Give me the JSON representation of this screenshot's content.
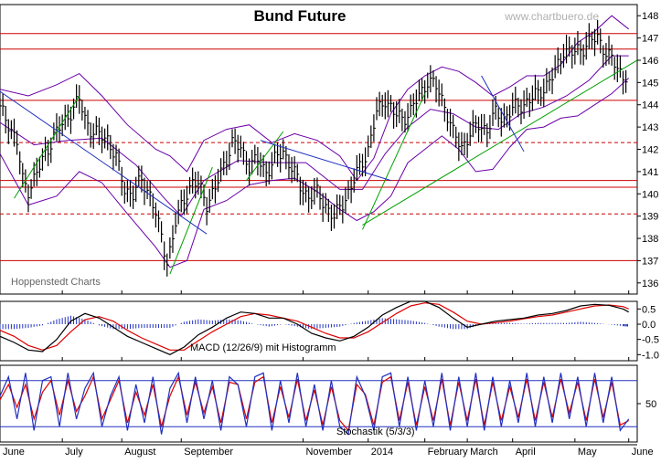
{
  "title": "Bund Future",
  "watermark": "www.chartbuero.de",
  "source_label": "Hoppenstedt Charts",
  "colors": {
    "price": "#000000",
    "bollinger": "#6a00a8",
    "support_lines": "#cc0000",
    "trend_up": "#00a000",
    "trend_down": "#2030c0",
    "macd_line": "#000000",
    "signal_line": "#dd0000",
    "histogram": "#2030c0",
    "stoch_k": "#2030c0",
    "stoch_d": "#dd0000",
    "watermark": "#b0b0b0"
  },
  "chart_data": [
    {
      "type": "line",
      "panel": "price",
      "title": "Bund Future",
      "x_labels": [
        "June",
        "July",
        "August",
        "September",
        "November",
        "2014",
        "February",
        "March",
        "April",
        "May",
        "June"
      ],
      "x_label_positions": [
        0,
        22,
        43,
        64,
        107,
        130,
        150,
        165,
        181,
        203,
        222
      ],
      "x_range": [
        0,
        225
      ],
      "ylim": [
        135.5,
        148.5
      ],
      "yticks": [
        136,
        137,
        138,
        139,
        140,
        141,
        142,
        143,
        144,
        145,
        146,
        147,
        148
      ],
      "series": [
        {
          "kind": "close",
          "x": [
            0,
            3,
            6,
            8,
            10,
            13,
            16,
            19,
            22,
            25,
            28,
            30,
            32,
            35,
            38,
            41,
            44,
            47,
            50,
            53,
            55,
            57,
            59,
            61,
            62,
            64,
            66,
            68,
            70,
            73,
            76,
            79,
            82,
            85,
            88,
            91,
            94,
            97,
            100,
            103,
            106,
            109,
            112,
            115,
            118,
            121,
            124,
            127,
            130,
            133,
            136,
            139,
            142,
            145,
            148,
            151,
            154,
            157,
            160,
            163,
            166,
            169,
            172,
            175,
            178,
            181,
            184,
            187,
            190,
            193,
            196,
            199,
            202,
            205,
            208,
            211,
            214,
            217,
            220,
            222
          ],
          "y": [
            143.8,
            143.2,
            142.3,
            140.6,
            140.2,
            140.9,
            141.8,
            142.6,
            143.1,
            143.7,
            144.2,
            143.4,
            142.9,
            142.6,
            142.5,
            141.6,
            140.2,
            140.0,
            140.6,
            140.0,
            139.1,
            138.0,
            137.0,
            138.0,
            138.7,
            139.4,
            140.1,
            140.5,
            140.4,
            139.6,
            140.2,
            141.3,
            142.3,
            142.0,
            141.3,
            141.5,
            141.0,
            141.5,
            141.9,
            141.2,
            140.3,
            139.9,
            140.0,
            139.5,
            138.9,
            139.6,
            140.3,
            141.2,
            142.0,
            143.6,
            144.3,
            143.6,
            143.4,
            143.7,
            144.4,
            145.1,
            144.8,
            144.0,
            142.7,
            142.1,
            142.7,
            143.1,
            142.9,
            143.6,
            143.4,
            143.8,
            144.0,
            144.2,
            144.5,
            144.9,
            145.4,
            146.5,
            146.3,
            146.5,
            146.8,
            147.0,
            146.4,
            145.8,
            145.3,
            145.4
          ]
        },
        {
          "kind": "bollinger-upper",
          "x": [
            0,
            10,
            20,
            28,
            36,
            45,
            55,
            60,
            66,
            72,
            80,
            88,
            96,
            104,
            112,
            120,
            126,
            132,
            138,
            144,
            150,
            156,
            162,
            168,
            174,
            180,
            186,
            192,
            198,
            204,
            210,
            216,
            222
          ],
          "y": [
            144.7,
            144.4,
            144.9,
            145.4,
            144.4,
            143.1,
            142.0,
            141.7,
            141.0,
            142.4,
            142.9,
            143.1,
            142.3,
            142.7,
            142.4,
            141.7,
            140.6,
            141.6,
            143.6,
            144.7,
            145.3,
            145.7,
            145.5,
            145.0,
            144.4,
            144.8,
            145.3,
            145.3,
            145.8,
            146.8,
            147.3,
            148.0,
            147.4
          ]
        },
        {
          "kind": "bollinger-lower",
          "x": [
            0,
            10,
            20,
            28,
            36,
            45,
            55,
            60,
            66,
            72,
            80,
            88,
            96,
            104,
            112,
            120,
            126,
            132,
            138,
            144,
            150,
            156,
            162,
            168,
            174,
            180,
            186,
            192,
            198,
            204,
            210,
            216,
            222
          ],
          "y": [
            141.8,
            139.5,
            139.9,
            141.0,
            140.5,
            139.1,
            137.6,
            136.7,
            137.0,
            139.3,
            139.7,
            140.4,
            140.6,
            140.7,
            140.1,
            139.3,
            138.8,
            139.2,
            139.9,
            141.4,
            142.0,
            142.6,
            142.0,
            141.0,
            141.1,
            142.1,
            142.9,
            143.0,
            143.4,
            143.5,
            144.0,
            144.5,
            145.2
          ]
        },
        {
          "kind": "bollinger-mid",
          "x": [
            0,
            12,
            24,
            36,
            48,
            58,
            64,
            72,
            84,
            96,
            108,
            120,
            128,
            136,
            144,
            152,
            160,
            168,
            176,
            184,
            192,
            200,
            208,
            216,
            222
          ],
          "y": [
            143.2,
            142.2,
            142.4,
            142.5,
            141.3,
            139.8,
            139.0,
            140.6,
            141.5,
            141.4,
            141.4,
            140.2,
            140.2,
            141.8,
            143.0,
            143.8,
            143.6,
            143.0,
            142.9,
            143.6,
            143.9,
            144.4,
            145.1,
            146.2,
            146.2
          ]
        }
      ],
      "horizontal_lines": [
        147.2,
        146.5,
        144.2,
        140.6,
        140.3,
        137.0
      ],
      "dashed_lines": [
        139.1,
        142.3
      ],
      "trend_lines": [
        {
          "color": "trend_up",
          "points": [
            [
              5,
              139.8
            ],
            [
              28,
              144.4
            ]
          ]
        },
        {
          "color": "trend_up",
          "points": [
            [
              60,
              136.4
            ],
            [
              75,
              141.2
            ]
          ]
        },
        {
          "color": "trend_up",
          "points": [
            [
              87,
              140.6
            ],
            [
              100,
              142.8
            ]
          ]
        },
        {
          "color": "trend_up",
          "points": [
            [
              128,
              138.4
            ],
            [
              150,
              144.5
            ]
          ]
        },
        {
          "color": "trend_up",
          "points": [
            [
              128,
              138.6
            ],
            [
              225,
              146.0
            ]
          ]
        },
        {
          "color": "trend_down",
          "points": [
            [
              0,
              144.6
            ],
            [
              73,
              138.2
            ]
          ]
        },
        {
          "color": "trend_down",
          "points": [
            [
              92,
              142.4
            ],
            [
              138,
              140.6
            ]
          ]
        },
        {
          "color": "trend_down",
          "points": [
            [
              170,
              145.3
            ],
            [
              185,
              141.9
            ]
          ]
        }
      ]
    },
    {
      "type": "line",
      "panel": "macd",
      "title": "MACD (12/26/9) mit Histogramm",
      "ylim": [
        -1.2,
        0.75
      ],
      "yticks": [
        0.5,
        0.0,
        -0.5,
        -1.0
      ],
      "ytick_labels": [
        "0.5",
        "0.0",
        "-0.5",
        "-1.0"
      ],
      "series": [
        {
          "kind": "macd",
          "x": [
            0,
            5,
            10,
            15,
            20,
            25,
            30,
            35,
            40,
            45,
            50,
            55,
            60,
            65,
            70,
            75,
            80,
            85,
            90,
            95,
            100,
            105,
            110,
            115,
            120,
            125,
            130,
            135,
            140,
            145,
            150,
            155,
            160,
            165,
            170,
            175,
            180,
            185,
            190,
            195,
            200,
            205,
            210,
            215,
            220,
            222
          ],
          "y": [
            -0.4,
            -0.6,
            -0.85,
            -0.9,
            -0.5,
            0.1,
            0.35,
            0.2,
            -0.1,
            -0.4,
            -0.6,
            -0.8,
            -1.0,
            -0.75,
            -0.35,
            -0.1,
            0.2,
            0.4,
            0.35,
            0.2,
            0.2,
            0.0,
            -0.3,
            -0.45,
            -0.55,
            -0.4,
            -0.1,
            0.3,
            0.55,
            0.75,
            0.75,
            0.55,
            0.2,
            -0.1,
            0.0,
            0.1,
            0.15,
            0.2,
            0.3,
            0.35,
            0.45,
            0.6,
            0.65,
            0.62,
            0.5,
            0.4
          ]
        },
        {
          "kind": "signal",
          "x": [
            0,
            5,
            10,
            15,
            20,
            25,
            30,
            35,
            40,
            45,
            50,
            55,
            60,
            65,
            70,
            75,
            80,
            85,
            90,
            95,
            100,
            105,
            110,
            115,
            120,
            125,
            130,
            135,
            140,
            145,
            150,
            155,
            160,
            165,
            170,
            175,
            180,
            185,
            190,
            195,
            200,
            205,
            210,
            215,
            220,
            222
          ],
          "y": [
            -0.2,
            -0.4,
            -0.7,
            -0.85,
            -0.7,
            -0.25,
            0.15,
            0.25,
            0.1,
            -0.2,
            -0.45,
            -0.65,
            -0.85,
            -0.85,
            -0.55,
            -0.25,
            0.0,
            0.25,
            0.35,
            0.3,
            0.2,
            0.1,
            -0.1,
            -0.3,
            -0.45,
            -0.45,
            -0.25,
            0.05,
            0.35,
            0.6,
            0.7,
            0.65,
            0.4,
            0.1,
            0.0,
            0.05,
            0.1,
            0.18,
            0.25,
            0.3,
            0.4,
            0.5,
            0.6,
            0.63,
            0.58,
            0.5
          ]
        }
      ]
    },
    {
      "type": "line",
      "panel": "stochastic",
      "title": "Stochastik (5/3/3)",
      "ylim": [
        0,
        100
      ],
      "yticks": [
        50
      ],
      "reference_lines": [
        80,
        20
      ],
      "series": [
        {
          "kind": "%K",
          "x": [
            0,
            3,
            6,
            9,
            12,
            15,
            18,
            21,
            24,
            27,
            30,
            33,
            36,
            39,
            42,
            45,
            48,
            51,
            54,
            57,
            60,
            63,
            66,
            69,
            72,
            75,
            78,
            81,
            84,
            87,
            90,
            93,
            96,
            99,
            102,
            105,
            108,
            111,
            114,
            117,
            120,
            123,
            126,
            129,
            132,
            135,
            138,
            141,
            144,
            147,
            150,
            153,
            156,
            159,
            162,
            165,
            168,
            171,
            174,
            177,
            180,
            183,
            186,
            189,
            192,
            195,
            198,
            201,
            204,
            207,
            210,
            213,
            216,
            219,
            222
          ],
          "y": [
            60,
            85,
            30,
            90,
            15,
            80,
            85,
            20,
            90,
            30,
            70,
            90,
            20,
            60,
            85,
            15,
            75,
            25,
            85,
            10,
            70,
            90,
            25,
            85,
            30,
            80,
            15,
            85,
            75,
            20,
            85,
            90,
            15,
            80,
            25,
            90,
            20,
            75,
            15,
            80,
            20,
            10,
            85,
            60,
            15,
            85,
            90,
            20,
            85,
            15,
            80,
            20,
            90,
            15,
            85,
            20,
            90,
            15,
            85,
            20,
            80,
            25,
            90,
            20,
            85,
            25,
            90,
            30,
            85,
            20,
            90,
            25,
            85,
            15,
            30
          ]
        },
        {
          "kind": "%D",
          "x": [
            0,
            3,
            6,
            9,
            12,
            15,
            18,
            21,
            24,
            27,
            30,
            33,
            36,
            39,
            42,
            45,
            48,
            51,
            54,
            57,
            60,
            63,
            66,
            69,
            72,
            75,
            78,
            81,
            84,
            87,
            90,
            93,
            96,
            99,
            102,
            105,
            108,
            111,
            114,
            117,
            120,
            123,
            126,
            129,
            132,
            135,
            138,
            141,
            144,
            147,
            150,
            153,
            156,
            159,
            162,
            165,
            168,
            171,
            174,
            177,
            180,
            183,
            186,
            189,
            192,
            195,
            198,
            201,
            204,
            207,
            210,
            213,
            216,
            219,
            222
          ],
          "y": [
            55,
            75,
            45,
            75,
            30,
            65,
            80,
            35,
            80,
            40,
            60,
            85,
            30,
            55,
            80,
            25,
            65,
            35,
            75,
            20,
            60,
            85,
            35,
            78,
            38,
            72,
            25,
            78,
            75,
            30,
            78,
            85,
            25,
            72,
            32,
            82,
            28,
            68,
            22,
            72,
            28,
            15,
            75,
            62,
            22,
            78,
            85,
            28,
            78,
            22,
            72,
            28,
            82,
            22,
            78,
            28,
            82,
            22,
            78,
            28,
            72,
            32,
            82,
            28,
            78,
            32,
            82,
            38,
            78,
            28,
            82,
            32,
            78,
            22,
            28
          ]
        }
      ]
    }
  ]
}
